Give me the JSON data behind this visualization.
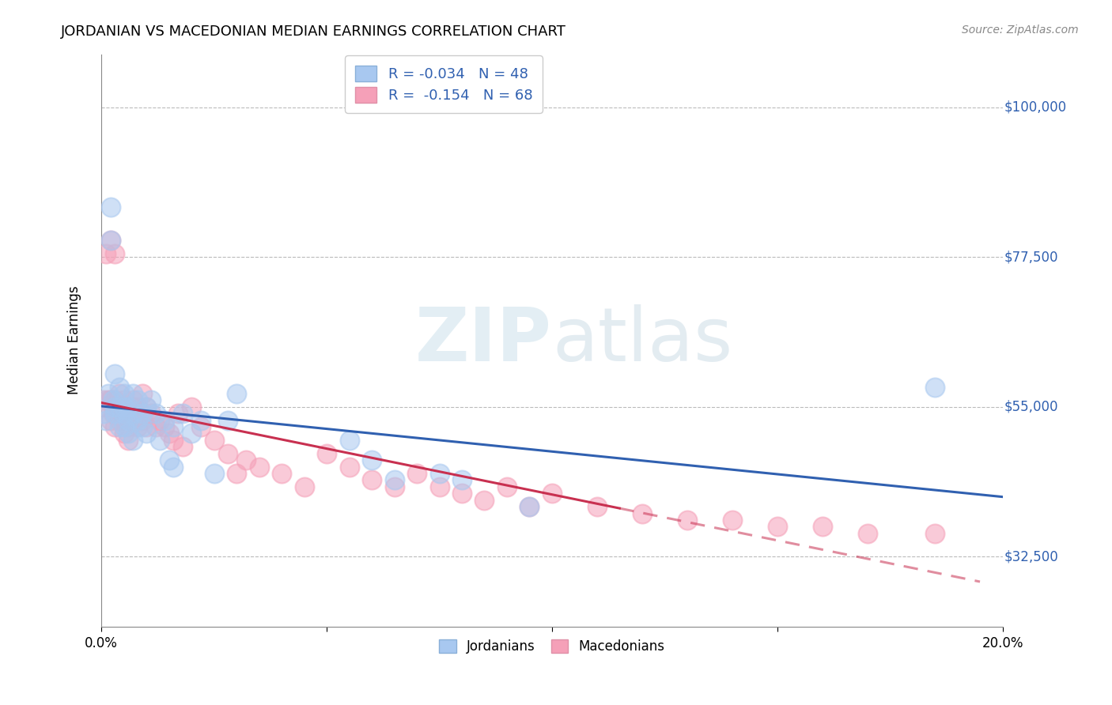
{
  "title": "JORDANIAN VS MACEDONIAN MEDIAN EARNINGS CORRELATION CHART",
  "source": "Source: ZipAtlas.com",
  "ylabel": "Median Earnings",
  "xlim": [
    0.0,
    0.2
  ],
  "ylim": [
    22000,
    108000
  ],
  "yticks": [
    32500,
    55000,
    77500,
    100000
  ],
  "ytick_labels": [
    "$32,500",
    "$55,000",
    "$77,500",
    "$100,000"
  ],
  "xticks": [
    0.0,
    0.05,
    0.1,
    0.15,
    0.2
  ],
  "xtick_labels": [
    "0.0%",
    "",
    "",
    "",
    "20.0%"
  ],
  "legend_r1": "R = -0.034   N = 48",
  "legend_r2": "R =  -0.154   N = 68",
  "color_blue": "#A8C8F0",
  "color_pink": "#F5A0B8",
  "trend_blue": "#3060B0",
  "trend_pink": "#C83050",
  "background": "#FFFFFF",
  "grid_color": "#BBBBBB",
  "watermark": "ZIPatlas",
  "jordanians_x": [
    0.0005,
    0.001,
    0.0015,
    0.002,
    0.002,
    0.0025,
    0.003,
    0.003,
    0.003,
    0.004,
    0.004,
    0.004,
    0.005,
    0.005,
    0.005,
    0.005,
    0.006,
    0.006,
    0.006,
    0.007,
    0.007,
    0.007,
    0.008,
    0.008,
    0.009,
    0.009,
    0.01,
    0.01,
    0.011,
    0.012,
    0.013,
    0.014,
    0.015,
    0.016,
    0.016,
    0.018,
    0.02,
    0.022,
    0.025,
    0.028,
    0.03,
    0.055,
    0.06,
    0.065,
    0.075,
    0.08,
    0.095,
    0.185
  ],
  "jordanians_y": [
    54000,
    53000,
    57000,
    85000,
    80000,
    56000,
    55000,
    60000,
    54000,
    55000,
    52000,
    58000,
    55000,
    52000,
    57000,
    54000,
    51000,
    55000,
    53000,
    50000,
    54000,
    57000,
    53000,
    56000,
    54000,
    52000,
    55000,
    51000,
    56000,
    54000,
    50000,
    53000,
    47000,
    52000,
    46000,
    54000,
    51000,
    53000,
    45000,
    53000,
    57000,
    50000,
    47000,
    44000,
    45000,
    44000,
    40000,
    58000
  ],
  "macedonians_x": [
    0.0005,
    0.001,
    0.001,
    0.0015,
    0.002,
    0.002,
    0.002,
    0.0025,
    0.003,
    0.003,
    0.003,
    0.003,
    0.004,
    0.004,
    0.004,
    0.005,
    0.005,
    0.005,
    0.005,
    0.006,
    0.006,
    0.006,
    0.006,
    0.007,
    0.007,
    0.007,
    0.008,
    0.008,
    0.009,
    0.009,
    0.01,
    0.01,
    0.011,
    0.012,
    0.013,
    0.014,
    0.015,
    0.016,
    0.017,
    0.018,
    0.02,
    0.022,
    0.025,
    0.028,
    0.03,
    0.032,
    0.035,
    0.04,
    0.045,
    0.05,
    0.055,
    0.06,
    0.065,
    0.07,
    0.075,
    0.08,
    0.085,
    0.09,
    0.095,
    0.1,
    0.11,
    0.12,
    0.13,
    0.14,
    0.15,
    0.16,
    0.17,
    0.185
  ],
  "macedonians_y": [
    56000,
    55000,
    78000,
    56000,
    80000,
    56000,
    53000,
    54000,
    56000,
    78000,
    55000,
    52000,
    55000,
    53000,
    57000,
    56000,
    53000,
    55000,
    51000,
    54000,
    52000,
    55000,
    50000,
    55000,
    53000,
    56000,
    52000,
    55000,
    53000,
    57000,
    52000,
    55000,
    54000,
    52000,
    53000,
    52000,
    51000,
    50000,
    54000,
    49000,
    55000,
    52000,
    50000,
    48000,
    45000,
    47000,
    46000,
    45000,
    43000,
    48000,
    46000,
    44000,
    43000,
    45000,
    43000,
    42000,
    41000,
    43000,
    40000,
    42000,
    40000,
    39000,
    38000,
    38000,
    37000,
    37000,
    36000,
    36000
  ]
}
